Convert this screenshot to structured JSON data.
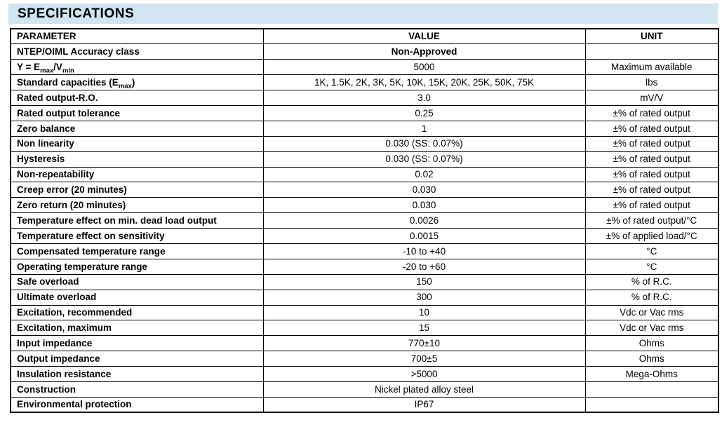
{
  "page": {
    "title": "SPECIFICATIONS",
    "band_color": "#d0e4f1"
  },
  "table": {
    "columns": [
      "PARAMETER",
      "VALUE",
      "UNIT"
    ],
    "rows": [
      {
        "parameter": "NTEP/OIML Accuracy class",
        "value": "Non-Approved",
        "unit": "",
        "value_bold": true
      },
      {
        "parameter": "Y = E_{max}/V_{min}",
        "value": "5000",
        "unit": "Maximum available"
      },
      {
        "parameter": "Standard capacities (E_{max})",
        "value": "1K, 1.5K, 2K, 3K, 5K, 10K, 15K, 20K, 25K, 50K, 75K",
        "unit": "lbs"
      },
      {
        "parameter": "Rated output-R.O.",
        "value": "3.0",
        "unit": "mV/V"
      },
      {
        "parameter": "Rated output tolerance",
        "value": "0.25",
        "unit": "±% of rated output"
      },
      {
        "parameter": "Zero balance",
        "value": "1",
        "unit": "±% of rated output"
      },
      {
        "parameter": "Non linearity",
        "value": "0.030 (SS: 0.07%)",
        "unit": "±% of rated output"
      },
      {
        "parameter": "Hysteresis",
        "value": "0.030 (SS: 0.07%)",
        "unit": "±% of rated output"
      },
      {
        "parameter": "Non-repeatability",
        "value": "0.02",
        "unit": "±% of rated output"
      },
      {
        "parameter": "Creep error (20 minutes)",
        "value": "0.030",
        "unit": "±% of rated output"
      },
      {
        "parameter": "Zero return (20 minutes)",
        "value": "0.030",
        "unit": "±% of rated output"
      },
      {
        "parameter": "Temperature effect on min. dead load output",
        "value": "0.0026",
        "unit": "±% of rated output/°C"
      },
      {
        "parameter": "Temperature effect on sensitivity",
        "value": "0.0015",
        "unit": "±% of applied load/°C"
      },
      {
        "parameter": "Compensated temperature range",
        "value": "-10 to +40",
        "unit": "°C"
      },
      {
        "parameter": "Operating temperature range",
        "value": "-20 to +60",
        "unit": "°C"
      },
      {
        "parameter": "Safe overload",
        "value": "150",
        "unit": "% of R.C."
      },
      {
        "parameter": "Ultimate overload",
        "value": "300",
        "unit": "% of R.C."
      },
      {
        "parameter": "Excitation, recommended",
        "value": "10",
        "unit": "Vdc or Vac rms"
      },
      {
        "parameter": "Excitation, maximum",
        "value": "15",
        "unit": "Vdc or Vac rms"
      },
      {
        "parameter": "Input impedance",
        "value": "770±10",
        "unit": "Ohms"
      },
      {
        "parameter": "Output impedance",
        "value": "700±5",
        "unit": "Ohms"
      },
      {
        "parameter": "Insulation resistance",
        "value": ">5000",
        "unit": "Mega-Ohms"
      },
      {
        "parameter": "Construction",
        "value": "Nickel plated alloy steel",
        "unit": ""
      },
      {
        "parameter": "Environmental protection",
        "value": "IP67",
        "unit": ""
      }
    ]
  }
}
